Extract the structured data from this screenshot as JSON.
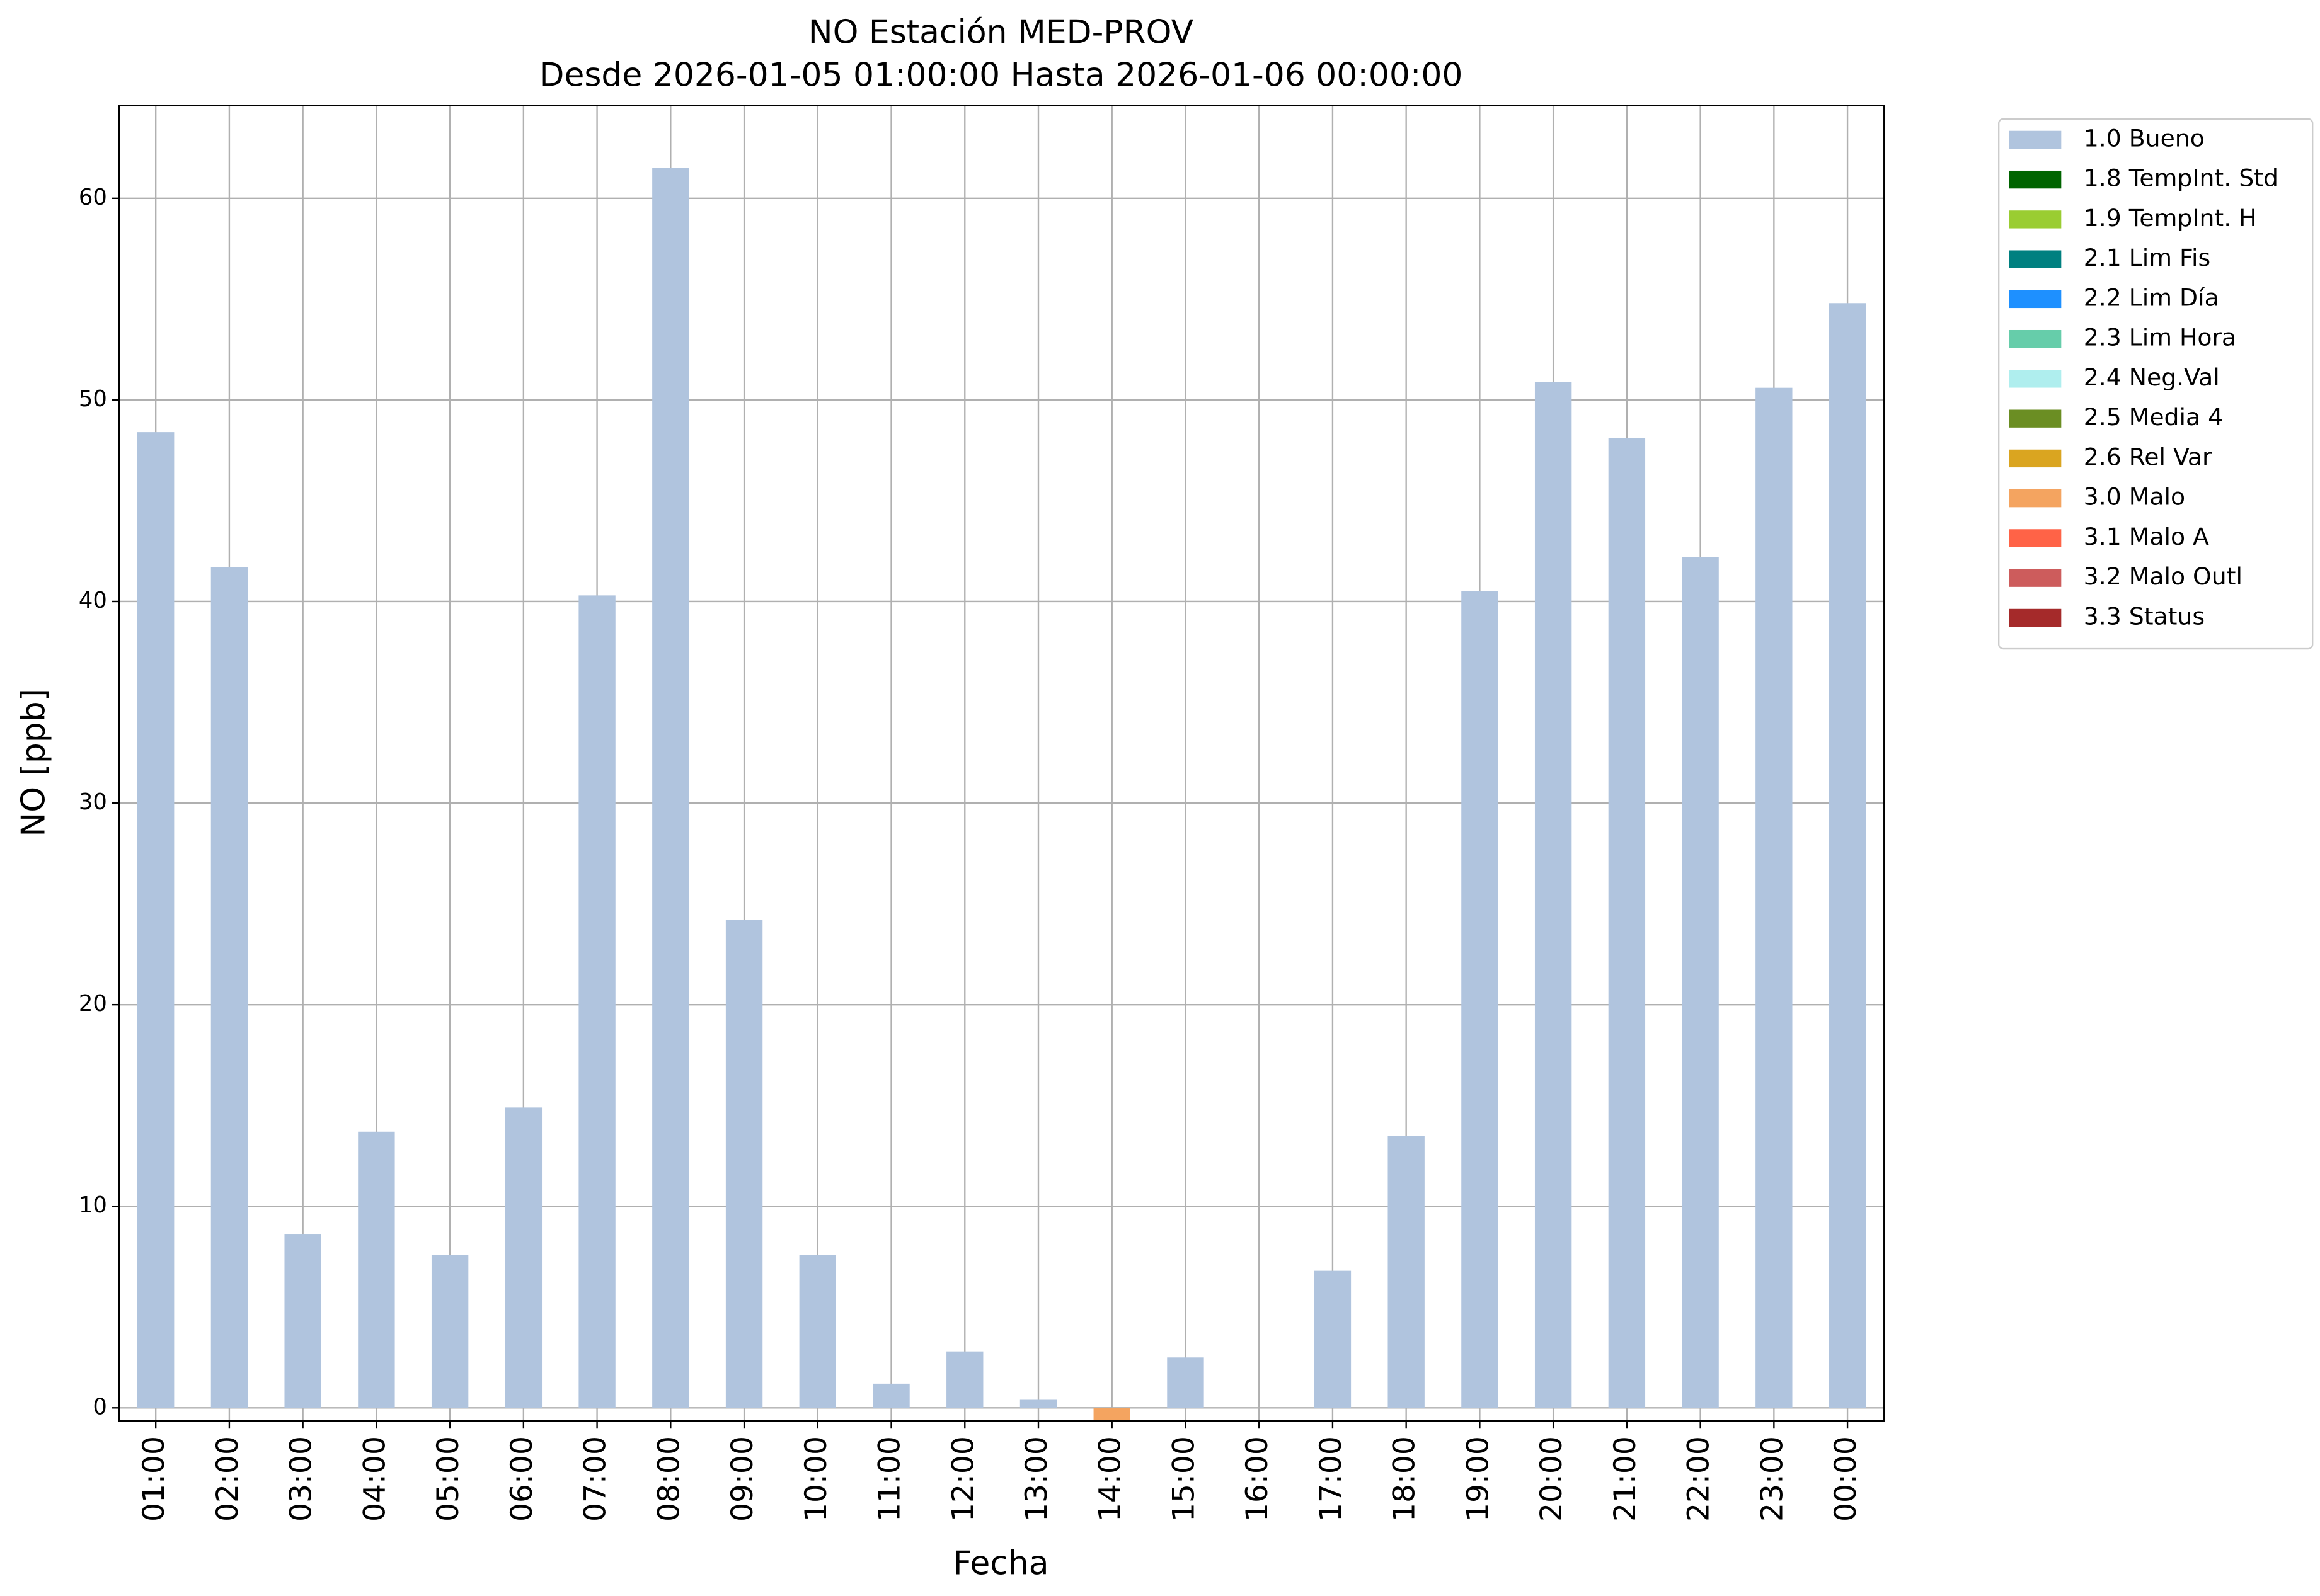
{
  "chart_data": {
    "type": "bar",
    "stacked": true,
    "title": "NO Estación MED-PROV",
    "subtitle": "Desde 2026-01-05 01:00:00 Hasta 2026-01-06 00:00:00",
    "xlabel": "Fecha",
    "ylabel": "NO [ppb]",
    "categories": [
      "01:00",
      "02:00",
      "03:00",
      "04:00",
      "05:00",
      "06:00",
      "07:00",
      "08:00",
      "09:00",
      "10:00",
      "11:00",
      "12:00",
      "13:00",
      "14:00",
      "15:00",
      "16:00",
      "17:00",
      "18:00",
      "19:00",
      "20:00",
      "21:00",
      "22:00",
      "23:00",
      "00:00"
    ],
    "series": [
      {
        "name": "1.0 Bueno",
        "color": "#b0c4de",
        "values": [
          48.4,
          41.7,
          8.6,
          13.7,
          7.6,
          14.9,
          40.3,
          61.5,
          24.2,
          7.6,
          1.2,
          2.8,
          0.4,
          null,
          2.5,
          null,
          6.8,
          13.5,
          40.5,
          50.9,
          48.1,
          42.2,
          50.6,
          54.8
        ]
      },
      {
        "name": "1.8 TempInt. Std",
        "color": "#006400",
        "values": [
          null,
          null,
          null,
          null,
          null,
          null,
          null,
          null,
          null,
          null,
          null,
          null,
          null,
          null,
          null,
          null,
          null,
          null,
          null,
          null,
          null,
          null,
          null,
          null
        ]
      },
      {
        "name": "1.9 TempInt. H",
        "color": "#9acd32",
        "values": [
          null,
          null,
          null,
          null,
          null,
          null,
          null,
          null,
          null,
          null,
          null,
          null,
          null,
          null,
          null,
          null,
          null,
          null,
          null,
          null,
          null,
          null,
          null,
          null
        ]
      },
      {
        "name": "2.1 Lim Fis",
        "color": "#008080",
        "values": [
          null,
          null,
          null,
          null,
          null,
          null,
          null,
          null,
          null,
          null,
          null,
          null,
          null,
          null,
          null,
          null,
          null,
          null,
          null,
          null,
          null,
          null,
          null,
          null
        ]
      },
      {
        "name": "2.2 Lim Día",
        "color": "#1e90ff",
        "values": [
          null,
          null,
          null,
          null,
          null,
          null,
          null,
          null,
          null,
          null,
          null,
          null,
          null,
          null,
          null,
          null,
          null,
          null,
          null,
          null,
          null,
          null,
          null,
          null
        ]
      },
      {
        "name": "2.3 Lim Hora",
        "color": "#66cdaa",
        "values": [
          null,
          null,
          null,
          null,
          null,
          null,
          null,
          null,
          null,
          null,
          null,
          null,
          null,
          null,
          null,
          null,
          null,
          null,
          null,
          null,
          null,
          null,
          null,
          null
        ]
      },
      {
        "name": "2.4 Neg.Val",
        "color": "#afeeee",
        "values": [
          null,
          null,
          null,
          null,
          null,
          null,
          null,
          null,
          null,
          null,
          null,
          null,
          null,
          null,
          null,
          null,
          null,
          null,
          null,
          null,
          null,
          null,
          null,
          null
        ]
      },
      {
        "name": "2.5 Media 4",
        "color": "#6b8e23",
        "values": [
          null,
          null,
          null,
          null,
          null,
          null,
          null,
          null,
          null,
          null,
          null,
          null,
          null,
          null,
          null,
          null,
          null,
          null,
          null,
          null,
          null,
          null,
          null,
          null
        ]
      },
      {
        "name": "2.6 Rel Var",
        "color": "#daa520",
        "values": [
          null,
          null,
          null,
          null,
          null,
          null,
          null,
          null,
          null,
          null,
          null,
          null,
          null,
          null,
          null,
          null,
          null,
          null,
          null,
          null,
          null,
          null,
          null,
          null
        ]
      },
      {
        "name": "3.0 Malo",
        "color": "#f4a460",
        "values": [
          null,
          null,
          null,
          null,
          null,
          null,
          null,
          null,
          null,
          null,
          null,
          null,
          null,
          -0.65,
          null,
          null,
          null,
          null,
          null,
          null,
          null,
          null,
          null,
          null
        ]
      },
      {
        "name": "3.1 Malo A",
        "color": "#ff6347",
        "values": [
          null,
          null,
          null,
          null,
          null,
          null,
          null,
          null,
          null,
          null,
          null,
          null,
          null,
          null,
          null,
          null,
          null,
          null,
          null,
          null,
          null,
          null,
          null,
          null
        ]
      },
      {
        "name": "3.2 Malo Outl",
        "color": "#cd5c5c",
        "values": [
          null,
          null,
          null,
          null,
          null,
          null,
          null,
          null,
          null,
          null,
          null,
          null,
          null,
          null,
          null,
          null,
          null,
          null,
          null,
          null,
          null,
          null,
          null,
          null
        ]
      },
      {
        "name": "3.3 Status",
        "color": "#a52a2a",
        "values": [
          null,
          null,
          null,
          null,
          null,
          null,
          null,
          null,
          null,
          null,
          null,
          null,
          null,
          null,
          null,
          null,
          null,
          null,
          null,
          null,
          null,
          null,
          null,
          null
        ]
      }
    ],
    "ylim": [
      -0.66,
      64.6
    ],
    "yticks": [
      0,
      10,
      20,
      30,
      40,
      50,
      60
    ],
    "grid": true,
    "legend": "outside upper right"
  }
}
